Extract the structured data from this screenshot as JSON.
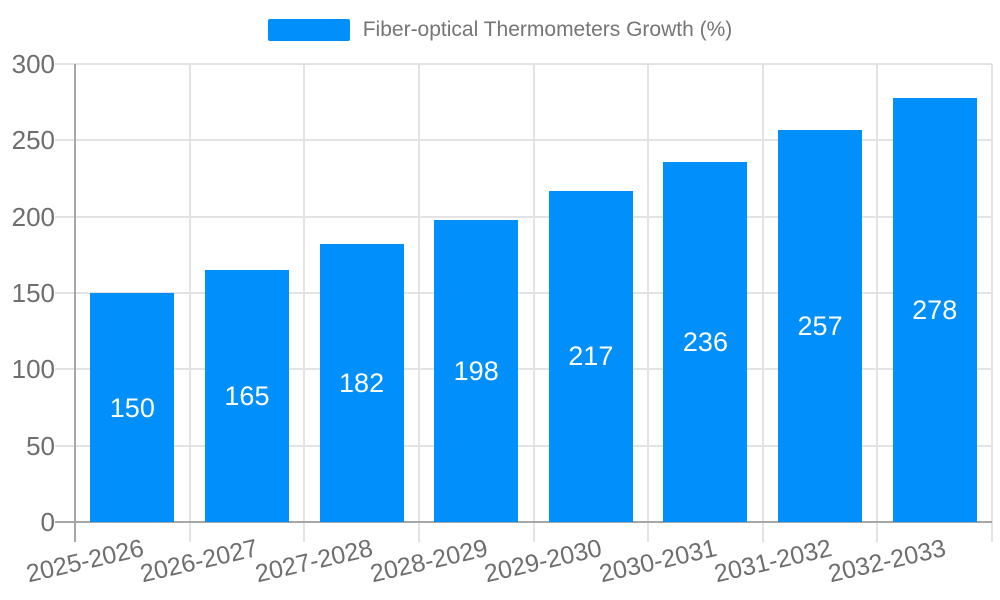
{
  "legend": {
    "label": "Fiber-optical Thermometers Growth (%)"
  },
  "colors": {
    "bar": "#008FFB",
    "grid": "#e3e3e3",
    "axis": "#a6a6a6",
    "tick_text": "#6e6e6e",
    "legend_text": "#757575",
    "value_text": "#ffffff",
    "background": "#ffffff"
  },
  "chart_data": {
    "type": "bar",
    "title": "Fiber-optical Thermometers Growth (%)",
    "categories": [
      "2025-2026",
      "2026-2027",
      "2027-2028",
      "2028-2029",
      "2029-2030",
      "2030-2031",
      "2031-2032",
      "2032-2033"
    ],
    "values": [
      150,
      165,
      182,
      198,
      217,
      236,
      257,
      278
    ],
    "xlabel": "",
    "ylabel": "",
    "ylim": [
      0,
      300
    ],
    "yticks": [
      0,
      50,
      100,
      150,
      200,
      250,
      300
    ],
    "grid": true,
    "legend_position": "top",
    "value_labels": "inside-center",
    "xtick_rotation_deg": -13
  }
}
